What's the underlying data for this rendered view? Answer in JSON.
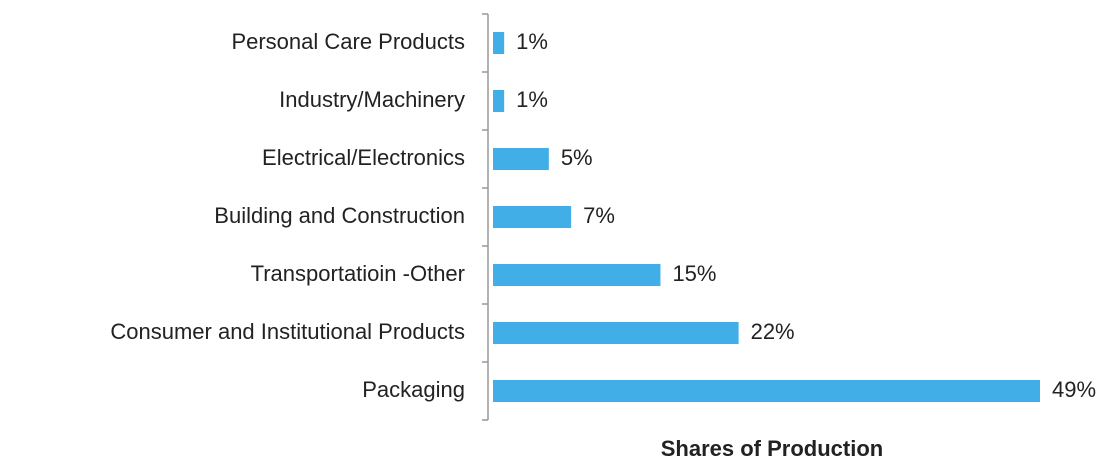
{
  "chart_data": {
    "type": "bar",
    "orientation": "horizontal",
    "x_label": "Shares of Production",
    "categories": [
      "Personal Care Products",
      "Industry/Machinery",
      "Electrical/Electronics",
      "Building and Construction",
      "Transportatioin -Other",
      "Consumer and Institutional Products",
      "Packaging"
    ],
    "values": [
      1,
      1,
      5,
      7,
      15,
      22,
      49
    ],
    "value_labels": [
      "1%",
      "1%",
      "5%",
      "7%",
      "15%",
      "22%",
      "49%"
    ],
    "color": "#41aee8"
  }
}
